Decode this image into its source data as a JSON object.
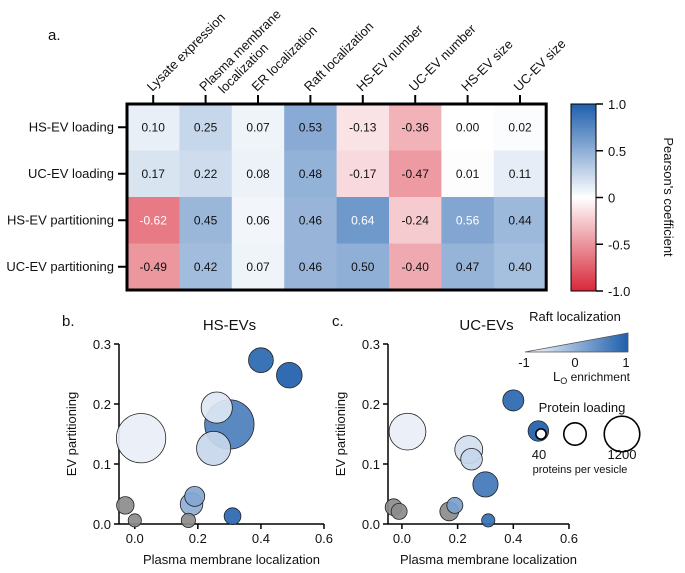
{
  "panels": {
    "a": "a.",
    "b": "b.",
    "c": "c."
  },
  "heatmap": {
    "columns": [
      "Lysate expression",
      "Plasma membrane localization",
      "ER localization",
      "Raft localization",
      "HS-EV number",
      "UC-EV number",
      "HS-EV size",
      "UC-EV size"
    ],
    "col_line1": [
      "Lysate expression",
      "Plasma membrane",
      "ER localization",
      "Raft localization",
      "HS-EV number",
      "UC-EV number",
      "HS-EV size",
      "UC-EV size"
    ],
    "col_line2": [
      "",
      "localization",
      "",
      "",
      "",
      "",
      "",
      ""
    ],
    "rows": [
      "HS-EV loading",
      "UC-EV loading",
      "HS-EV partitioning",
      "UC-EV partitioning"
    ],
    "values": [
      [
        0.1,
        0.25,
        0.07,
        0.53,
        -0.13,
        -0.36,
        0.0,
        0.02
      ],
      [
        0.17,
        0.22,
        0.08,
        0.48,
        -0.17,
        -0.47,
        0.01,
        0.11
      ],
      [
        -0.62,
        0.45,
        0.06,
        0.46,
        0.64,
        -0.24,
        0.56,
        0.44
      ],
      [
        -0.49,
        0.42,
        0.07,
        0.46,
        0.5,
        -0.4,
        0.47,
        0.4
      ]
    ],
    "labels": [
      [
        "0.10",
        "0.25",
        "0.07",
        "0.53",
        "-0.13",
        "-0.36",
        "0.00",
        "0.02"
      ],
      [
        "0.17",
        "0.22",
        "0.08",
        "0.48",
        "-0.17",
        "-0.47",
        "0.01",
        "0.11"
      ],
      [
        "-0.62",
        "0.45",
        "0.06",
        "0.46",
        "0.64",
        "-0.24",
        "0.56",
        "0.44"
      ],
      [
        "-0.49",
        "0.42",
        "0.07",
        "0.46",
        "0.50",
        "-0.40",
        "0.47",
        "0.40"
      ]
    ],
    "colorbar": {
      "label": "Pearson's coefficient",
      "ticks": [
        "1.0",
        "0.5",
        "0",
        "-0.5",
        "-1.0"
      ],
      "range": [
        -1,
        1
      ]
    }
  },
  "colors": {
    "positive": "#1f5fad",
    "negative": "#d8283a",
    "neutral": "#ffffff",
    "gray": "#8c8c8c"
  },
  "chart_data": [
    {
      "type": "heatmap",
      "title": "",
      "x": [
        "Lysate expression",
        "Plasma membrane localization",
        "ER localization",
        "Raft localization",
        "HS-EV number",
        "UC-EV number",
        "HS-EV size",
        "UC-EV size"
      ],
      "y": [
        "HS-EV loading",
        "UC-EV loading",
        "HS-EV partitioning",
        "UC-EV partitioning"
      ],
      "zlim": [
        -1,
        1
      ]
    },
    {
      "type": "scatter",
      "title": "HS-EVs",
      "xlabel": "Plasma membrane localization",
      "ylabel": "EV partitioning",
      "xlim": [
        -0.05,
        0.6
      ],
      "ylim": [
        0,
        0.3
      ],
      "xticks": [
        "0.0",
        "0.2",
        "0.4",
        "0.6"
      ],
      "yticks": [
        "0.0",
        "0.1",
        "0.2",
        "0.3"
      ],
      "points": [
        {
          "x": 0.02,
          "y": 0.143,
          "size": 1200,
          "raft": 0.1,
          "gray": false
        },
        {
          "x": 0.26,
          "y": 0.194,
          "size": 400,
          "raft": 0.15,
          "gray": false
        },
        {
          "x": 0.25,
          "y": 0.126,
          "size": 500,
          "raft": 0.25,
          "gray": false
        },
        {
          "x": 0.3,
          "y": 0.166,
          "size": 1200,
          "raft": 0.8,
          "gray": false
        },
        {
          "x": 0.4,
          "y": 0.273,
          "size": 220,
          "raft": 0.95,
          "gray": false
        },
        {
          "x": 0.49,
          "y": 0.248,
          "size": 240,
          "raft": 1.0,
          "gray": false
        },
        {
          "x": 0.19,
          "y": 0.046,
          "size": 120,
          "raft": 0.55,
          "gray": false
        },
        {
          "x": 0.18,
          "y": 0.033,
          "size": 170,
          "raft": 0.5,
          "gray": false
        },
        {
          "x": 0.31,
          "y": 0.013,
          "size": 70,
          "raft": 0.95,
          "gray": false
        },
        {
          "x": -0.03,
          "y": 0.031,
          "size": 80,
          "raft": 0,
          "gray": true
        },
        {
          "x": 0.0,
          "y": 0.006,
          "size": 30,
          "raft": 0,
          "gray": true
        },
        {
          "x": 0.17,
          "y": 0.006,
          "size": 40,
          "raft": 0,
          "gray": true
        }
      ]
    },
    {
      "type": "scatter",
      "title": "UC-EVs",
      "xlabel": "Plasma membrane localization",
      "ylabel": "EV partitioning",
      "xlim": [
        -0.05,
        0.6
      ],
      "ylim": [
        0,
        0.3
      ],
      "xticks": [
        "0.0",
        "0.2",
        "0.4",
        "0.6"
      ],
      "yticks": [
        "0.0",
        "0.1",
        "0.2",
        "0.3"
      ],
      "points": [
        {
          "x": 0.02,
          "y": 0.154,
          "size": 600,
          "raft": 0.1,
          "gray": false
        },
        {
          "x": 0.24,
          "y": 0.124,
          "size": 300,
          "raft": 0.2,
          "gray": false
        },
        {
          "x": 0.25,
          "y": 0.108,
          "size": 150,
          "raft": 0.25,
          "gray": false
        },
        {
          "x": 0.3,
          "y": 0.066,
          "size": 230,
          "raft": 0.85,
          "gray": false
        },
        {
          "x": 0.4,
          "y": 0.206,
          "size": 140,
          "raft": 0.95,
          "gray": false
        },
        {
          "x": 0.49,
          "y": 0.155,
          "size": 130,
          "raft": 1.0,
          "gray": false
        },
        {
          "x": 0.19,
          "y": 0.031,
          "size": 60,
          "raft": 0.6,
          "gray": false
        },
        {
          "x": 0.31,
          "y": 0.006,
          "size": 30,
          "raft": 0.9,
          "gray": false
        },
        {
          "x": -0.03,
          "y": 0.028,
          "size": 70,
          "raft": 0,
          "gray": true
        },
        {
          "x": -0.01,
          "y": 0.021,
          "size": 60,
          "raft": 0,
          "gray": true
        },
        {
          "x": 0.17,
          "y": 0.021,
          "size": 100,
          "raft": 0,
          "gray": true
        }
      ]
    }
  ],
  "legend": {
    "raft_title": "Raft localization",
    "raft_ticks": [
      "-1",
      "0",
      "1"
    ],
    "raft_sub": "L",
    "raft_sub_small": "O",
    "raft_sub_tail": " enrichment",
    "loading_title": "Protein loading",
    "loading_ticks": [
      "40",
      "1200"
    ],
    "loading_sizes": [
      40,
      400,
      1200
    ],
    "loading_unit": "proteins per vesicle"
  }
}
